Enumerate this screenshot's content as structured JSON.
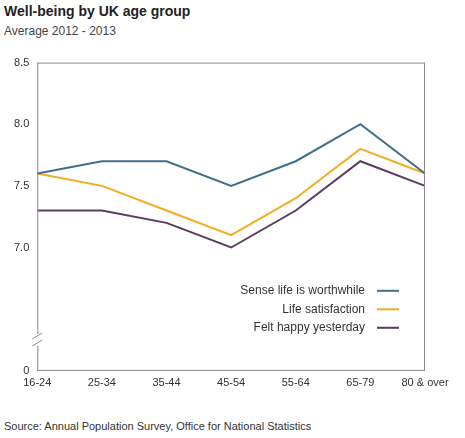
{
  "chart_data": {
    "type": "line",
    "title": "Well-being by UK age group",
    "subtitle": "Average 2012 - 2013",
    "source": "Source: Annual Population Survey, Office for National Statistics",
    "categories": [
      "16-24",
      "25-34",
      "35-44",
      "45-54",
      "55-64",
      "65-79",
      "80 & over"
    ],
    "series": [
      {
        "name": "Sense life is worthwhile",
        "color": "#436d8c",
        "values": [
          7.6,
          7.7,
          7.7,
          7.5,
          7.7,
          8.0,
          7.6
        ]
      },
      {
        "name": "Life satisfaction",
        "color": "#f2ad22",
        "values": [
          7.6,
          7.5,
          7.3,
          7.1,
          7.4,
          7.8,
          7.6
        ]
      },
      {
        "name": "Felt happy yesterday",
        "color": "#5b3b5f",
        "values": [
          7.3,
          7.3,
          7.2,
          7.0,
          7.3,
          7.7,
          7.5
        ]
      }
    ],
    "ylim": [
      0,
      8.5
    ],
    "yticks": [
      0,
      {
        "value": 7,
        "label": "7.0"
      },
      7.5,
      {
        "value": 8,
        "label": "8.0"
      },
      8.5
    ],
    "grid": false,
    "legend": "lower right"
  }
}
